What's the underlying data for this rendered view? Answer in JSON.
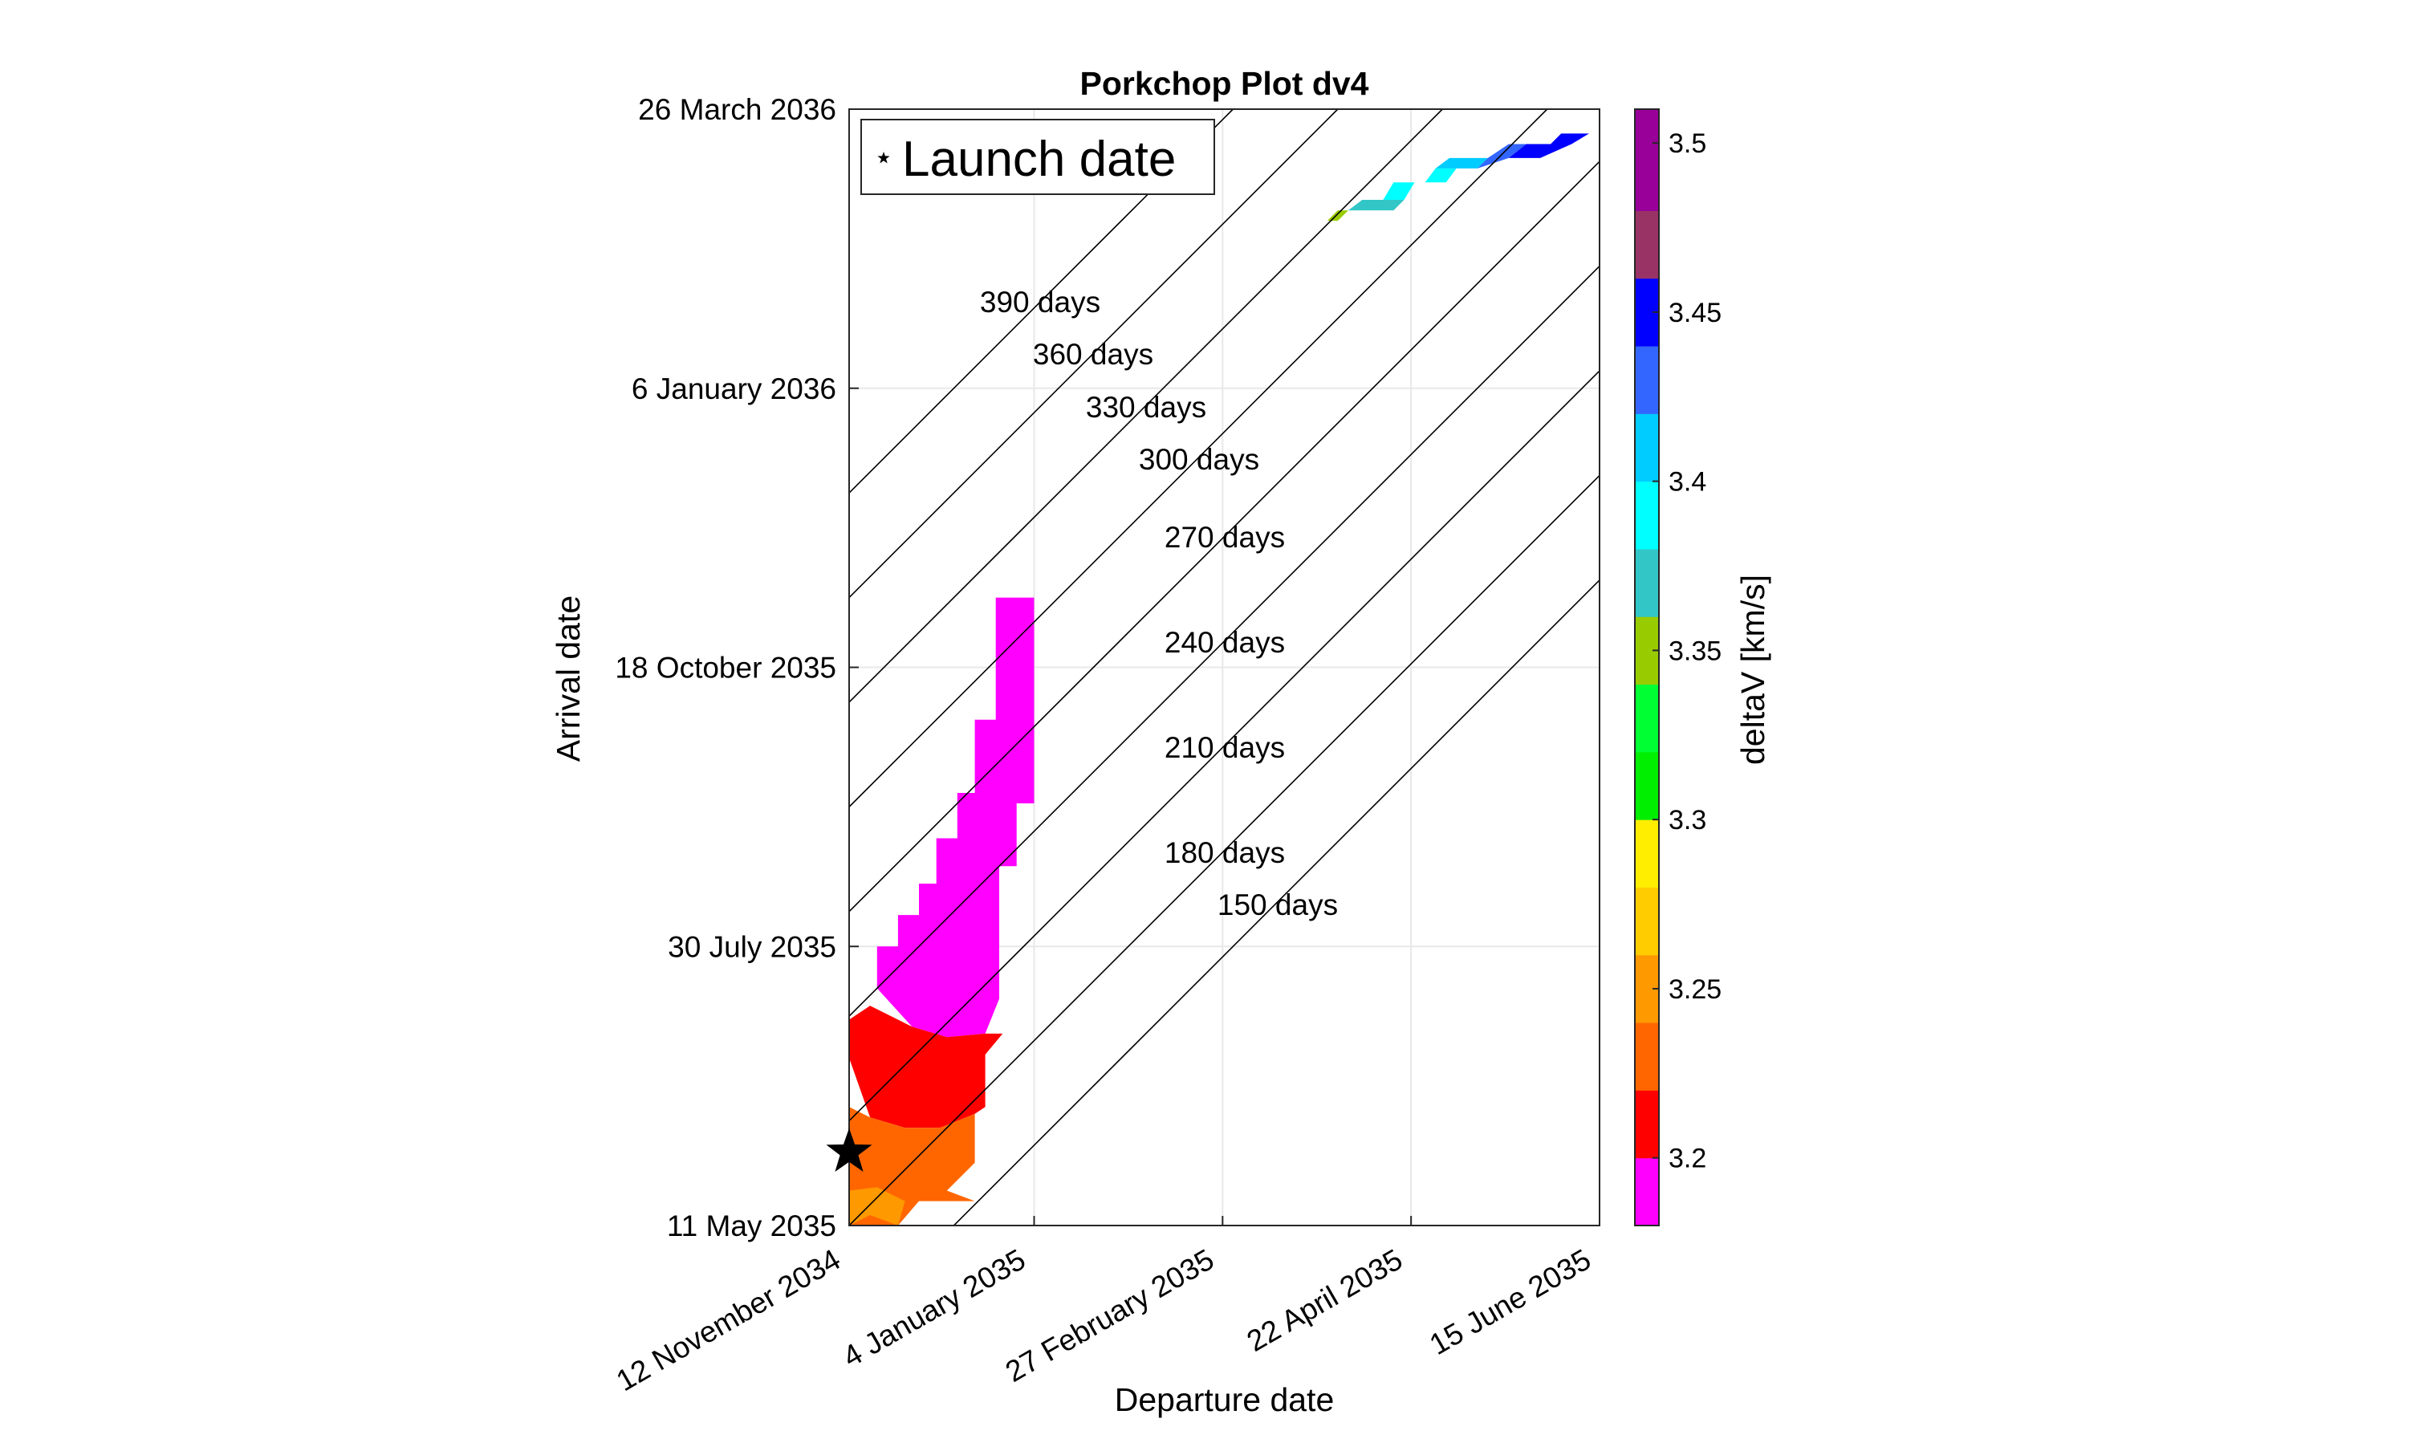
{
  "chart_data": {
    "type": "heatmap",
    "title": "Porkchop Plot dv4",
    "xlabel": "Departure date",
    "ylabel": "Arrival date",
    "colorbar_label": "deltaV [km/s]",
    "x_ticks": [
      "12 November 2034",
      "4 January 2035",
      "27 February 2035",
      "22 April 2035",
      "15 June 2035"
    ],
    "x_tick_dates": [
      "2034-11-12",
      "2035-01-04",
      "2035-02-27",
      "2035-04-22",
      "2035-06-15"
    ],
    "y_ticks": [
      "11 May 2035",
      "30 July 2035",
      "18 October 2035",
      "6 January 2036",
      "26 March 2036"
    ],
    "y_tick_dates": [
      "2035-05-11",
      "2035-07-30",
      "2035-10-18",
      "2036-01-06",
      "2036-03-26"
    ],
    "xlim": [
      "2034-11-12",
      "2035-06-15"
    ],
    "ylim": [
      "2035-05-11",
      "2036-03-26"
    ],
    "grid": true,
    "legend": {
      "label": "Launch date",
      "placement": "top-left",
      "marker": "star"
    },
    "launch_marker": {
      "departure": "2034-11-12",
      "arrival": "2035-06-01"
    },
    "time_of_flight_contours": [
      {
        "days": 150,
        "label": "150 days"
      },
      {
        "days": 180,
        "label": "180 days"
      },
      {
        "days": 210,
        "label": "210 days"
      },
      {
        "days": 240,
        "label": "240 days"
      },
      {
        "days": 270,
        "label": "270 days"
      },
      {
        "days": 300,
        "label": "300 days"
      },
      {
        "days": 330,
        "label": "330 days"
      },
      {
        "days": 360,
        "label": "360 days"
      },
      {
        "days": 390,
        "label": "390 days"
      }
    ],
    "colorbar": {
      "min": 3.18,
      "max": 3.51,
      "ticks": [
        "3.2",
        "3.25",
        "3.3",
        "3.35",
        "3.4",
        "3.45",
        "3.5"
      ],
      "tick_values": [
        3.2,
        3.25,
        3.3,
        3.35,
        3.4,
        3.45,
        3.5
      ],
      "levels": [
        {
          "from": 3.18,
          "to": 3.2,
          "color": "#ff00ff"
        },
        {
          "from": 3.2,
          "to": 3.22,
          "color": "#ff0000"
        },
        {
          "from": 3.22,
          "to": 3.24,
          "color": "#ff6600"
        },
        {
          "from": 3.24,
          "to": 3.26,
          "color": "#ff9900"
        },
        {
          "from": 3.26,
          "to": 3.28,
          "color": "#ffcc00"
        },
        {
          "from": 3.28,
          "to": 3.3,
          "color": "#ffee00"
        },
        {
          "from": 3.3,
          "to": 3.32,
          "color": "#00ee00"
        },
        {
          "from": 3.32,
          "to": 3.34,
          "color": "#00ff33"
        },
        {
          "from": 3.34,
          "to": 3.36,
          "color": "#99cc00"
        },
        {
          "from": 3.36,
          "to": 3.38,
          "color": "#33c6c6"
        },
        {
          "from": 3.38,
          "to": 3.4,
          "color": "#00ffff"
        },
        {
          "from": 3.4,
          "to": 3.42,
          "color": "#00ccff"
        },
        {
          "from": 3.42,
          "to": 3.44,
          "color": "#3366ff"
        },
        {
          "from": 3.44,
          "to": 3.46,
          "color": "#0000ff"
        },
        {
          "from": 3.46,
          "to": 3.48,
          "color": "#993366"
        },
        {
          "from": 3.48,
          "to": 3.51,
          "color": "#990099"
        }
      ]
    },
    "regions": [
      {
        "level": 3.19,
        "color": "#ff00ff",
        "boundary": [
          [
            "2034-11-20",
            "2035-07-18"
          ],
          [
            "2034-11-20",
            "2035-07-30"
          ],
          [
            "2034-11-26",
            "2035-07-30"
          ],
          [
            "2034-11-26",
            "2035-08-08"
          ],
          [
            "2034-12-02",
            "2035-08-08"
          ],
          [
            "2034-12-02",
            "2035-08-17"
          ],
          [
            "2034-12-07",
            "2035-08-17"
          ],
          [
            "2034-12-07",
            "2035-08-30"
          ],
          [
            "2034-12-13",
            "2035-08-30"
          ],
          [
            "2034-12-13",
            "2035-09-12"
          ],
          [
            "2034-12-18",
            "2035-09-12"
          ],
          [
            "2034-12-18",
            "2035-10-03"
          ],
          [
            "2034-12-24",
            "2035-10-03"
          ],
          [
            "2034-12-24",
            "2035-11-07"
          ],
          [
            "2034-12-30",
            "2035-11-07"
          ],
          [
            "2035-01-04",
            "2035-11-07"
          ],
          [
            "2035-01-04",
            "2035-09-09"
          ],
          [
            "2034-12-30",
            "2035-09-09"
          ],
          [
            "2034-12-30",
            "2035-08-22"
          ],
          [
            "2034-12-25",
            "2035-08-22"
          ],
          [
            "2034-12-25",
            "2035-07-15"
          ],
          [
            "2034-12-21",
            "2035-07-05"
          ],
          [
            "2034-12-10",
            "2035-07-04"
          ],
          [
            "2034-11-30",
            "2035-07-07"
          ]
        ]
      },
      {
        "level": 3.21,
        "color": "#ff0000",
        "boundary": [
          [
            "2034-11-12",
            "2035-06-28"
          ],
          [
            "2034-11-12",
            "2035-07-09"
          ],
          [
            "2034-11-18",
            "2035-07-13"
          ],
          [
            "2034-11-30",
            "2035-07-07"
          ],
          [
            "2034-12-10",
            "2035-07-04"
          ],
          [
            "2034-12-21",
            "2035-07-05"
          ],
          [
            "2034-12-26",
            "2035-07-05"
          ],
          [
            "2034-12-21",
            "2035-06-29"
          ],
          [
            "2034-12-21",
            "2035-06-14"
          ],
          [
            "2034-12-18",
            "2035-06-12"
          ],
          [
            "2034-12-08",
            "2035-06-08"
          ],
          [
            "2034-11-28",
            "2035-06-08"
          ],
          [
            "2034-11-18",
            "2035-06-11"
          ]
        ]
      },
      {
        "level": 3.23,
        "color": "#ff6600",
        "boundary": [
          [
            "2034-11-12",
            "2035-05-11"
          ],
          [
            "2034-11-12",
            "2035-06-14"
          ],
          [
            "2034-11-18",
            "2035-06-11"
          ],
          [
            "2034-11-28",
            "2035-06-08"
          ],
          [
            "2034-12-08",
            "2035-06-08"
          ],
          [
            "2034-12-18",
            "2035-06-12"
          ],
          [
            "2034-12-18",
            "2035-05-29"
          ],
          [
            "2034-12-10",
            "2035-05-21"
          ],
          [
            "2034-12-18",
            "2035-05-18"
          ],
          [
            "2034-12-02",
            "2035-05-18"
          ],
          [
            "2034-11-26",
            "2035-05-11"
          ]
        ]
      },
      {
        "level": 3.25,
        "color": "#ff9900",
        "boundary": [
          [
            "2034-11-12",
            "2035-05-11"
          ],
          [
            "2034-11-12",
            "2035-05-21"
          ],
          [
            "2034-11-20",
            "2035-05-22"
          ],
          [
            "2034-11-28",
            "2035-05-18"
          ],
          [
            "2034-11-26",
            "2035-05-11"
          ],
          [
            "2034-11-18",
            "2035-05-14"
          ]
        ]
      },
      {
        "level": 3.35,
        "color": "#99cc00",
        "boundary": [
          [
            "2035-03-29",
            "2036-02-23"
          ],
          [
            "2035-04-01",
            "2036-02-26"
          ],
          [
            "2035-04-04",
            "2036-02-26"
          ],
          [
            "2035-04-01",
            "2036-02-23"
          ]
        ]
      },
      {
        "level": 3.37,
        "color": "#33c6c6",
        "boundary": [
          [
            "2035-04-04",
            "2036-02-26"
          ],
          [
            "2035-04-08",
            "2036-02-29"
          ],
          [
            "2035-04-20",
            "2036-02-29"
          ],
          [
            "2035-04-17",
            "2036-02-26"
          ]
        ]
      },
      {
        "level": 3.39,
        "color": "#00ffff",
        "boundary": [
          [
            "2035-04-14",
            "2036-02-29"
          ],
          [
            "2035-04-17",
            "2036-03-05"
          ],
          [
            "2035-04-26",
            "2036-03-05"
          ],
          [
            "2035-04-29",
            "2036-03-09"
          ],
          [
            "2035-05-05",
            "2036-03-09"
          ],
          [
            "2035-05-02",
            "2036-03-05"
          ],
          [
            "2035-04-23",
            "2036-03-05"
          ],
          [
            "2035-04-20",
            "2036-02-29"
          ]
        ]
      },
      {
        "level": 3.41,
        "color": "#00ccff",
        "boundary": [
          [
            "2035-04-29",
            "2036-03-09"
          ],
          [
            "2035-05-03",
            "2036-03-12"
          ],
          [
            "2035-05-14",
            "2036-03-12"
          ],
          [
            "2035-05-11",
            "2036-03-09"
          ]
        ]
      },
      {
        "level": 3.43,
        "color": "#3366ff",
        "boundary": [
          [
            "2035-05-11",
            "2036-03-09"
          ],
          [
            "2035-05-14",
            "2036-03-12"
          ],
          [
            "2035-05-20",
            "2036-03-16"
          ],
          [
            "2035-05-25",
            "2036-03-16"
          ],
          [
            "2035-05-20",
            "2036-03-12"
          ]
        ]
      },
      {
        "level": 3.45,
        "color": "#0000ff",
        "boundary": [
          [
            "2035-05-20",
            "2036-03-12"
          ],
          [
            "2035-05-25",
            "2036-03-16"
          ],
          [
            "2035-06-01",
            "2036-03-16"
          ],
          [
            "2035-06-04",
            "2036-03-19"
          ],
          [
            "2035-06-12",
            "2036-03-19"
          ],
          [
            "2035-06-07",
            "2036-03-16"
          ],
          [
            "2035-05-29",
            "2036-03-12"
          ]
        ]
      }
    ]
  }
}
